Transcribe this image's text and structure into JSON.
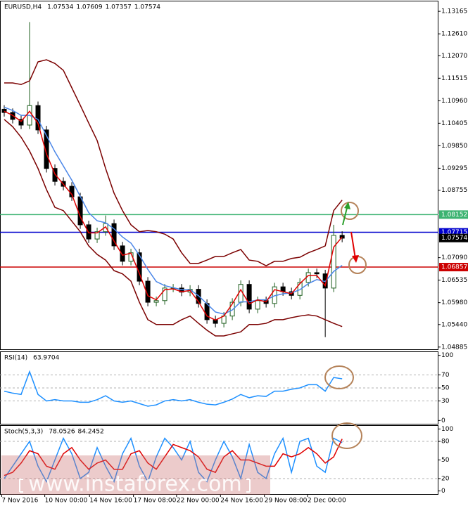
{
  "chart_data": [
    {
      "type": "candlestick",
      "title": "EURUSD,H4",
      "header_values": [
        1.07534,
        1.07609,
        1.07357,
        1.07574
      ],
      "open": [
        1.1075,
        1.1067,
        1.105,
        1.1036,
        1.1084,
        1.1024,
        1.0929,
        1.0897,
        1.0885,
        1.0859,
        1.079,
        1.0755,
        1.0773,
        1.0793,
        1.0738,
        1.07,
        1.0721,
        1.0651,
        1.0599,
        1.0603,
        1.0634,
        1.0634,
        1.0624,
        1.0631,
        1.0596,
        1.0556,
        1.0547,
        1.0565,
        1.0599,
        1.0643,
        1.0582,
        1.0603,
        1.0596,
        1.0637,
        1.0625,
        1.0616,
        1.0648,
        1.0672,
        1.0669,
        1.0634,
        1.0764
      ],
      "high": [
        1.1085,
        1.1077,
        1.106,
        1.129,
        1.1094,
        1.1034,
        1.0939,
        1.0907,
        1.0895,
        1.0869,
        1.08,
        1.0783,
        1.0813,
        1.0803,
        1.0748,
        1.0731,
        1.0731,
        1.0661,
        1.0613,
        1.0644,
        1.0644,
        1.0644,
        1.0641,
        1.0641,
        1.0606,
        1.0566,
        1.0575,
        1.0609,
        1.0653,
        1.0653,
        1.0613,
        1.0613,
        1.0647,
        1.0647,
        1.0635,
        1.0658,
        1.0682,
        1.0682,
        1.0679,
        1.079,
        1.0774
      ],
      "low": [
        1.1057,
        1.104,
        1.1026,
        1.1026,
        1.1014,
        1.0919,
        1.0887,
        1.0875,
        1.0849,
        1.078,
        1.0745,
        1.0745,
        1.0763,
        1.0728,
        1.069,
        1.069,
        1.0641,
        1.0589,
        1.0589,
        1.0593,
        1.0624,
        1.0614,
        1.0614,
        1.0586,
        1.0546,
        1.0537,
        1.0537,
        1.0555,
        1.0589,
        1.0572,
        1.0572,
        1.0586,
        1.0586,
        1.0615,
        1.0606,
        1.0606,
        1.0638,
        1.0659,
        1.0513,
        1.0624,
        1.0747
      ],
      "close": [
        1.1067,
        1.105,
        1.1036,
        1.1084,
        1.1024,
        1.0929,
        1.0897,
        1.0885,
        1.0859,
        1.079,
        1.0755,
        1.0773,
        1.0793,
        1.0738,
        1.07,
        1.0721,
        1.0651,
        1.0599,
        1.0603,
        1.0634,
        1.0634,
        1.0624,
        1.0631,
        1.0596,
        1.0556,
        1.0547,
        1.0565,
        1.0599,
        1.0643,
        1.0582,
        1.0603,
        1.0596,
        1.0637,
        1.0625,
        1.0616,
        1.0648,
        1.0672,
        1.0669,
        1.0634,
        1.0764,
        1.0757
      ],
      "up_color": "#1f5f1f",
      "down_color": "#000000",
      "overlays": [
        {
          "color": "#7b0000",
          "values": [
            1.114,
            1.114,
            1.1136,
            1.1145,
            1.1192,
            1.1197,
            1.1188,
            1.1171,
            1.1128,
            1.1085,
            1.1041,
            1.0998,
            1.0929,
            1.0868,
            1.0825,
            1.079,
            1.0773,
            1.0776,
            1.0773,
            1.0767,
            1.0755,
            1.0721,
            1.0695,
            1.0695,
            1.0703,
            1.0712,
            1.0712,
            1.0721,
            1.0729,
            1.0703,
            1.07,
            1.0689,
            1.07,
            1.07,
            1.0707,
            1.071,
            1.0721,
            1.0729,
            1.0738,
            1.0825,
            1.0851
          ]
        },
        {
          "color": "#7b0000",
          "values": [
            1.105,
            1.1032,
            1.1006,
            1.0972,
            1.0929,
            1.0877,
            1.0833,
            1.0825,
            1.0799,
            1.0773,
            1.0738,
            1.0717,
            1.0703,
            1.0677,
            1.0669,
            1.0651,
            1.0599,
            1.0556,
            1.0544,
            1.0544,
            1.0544,
            1.0556,
            1.0565,
            1.0547,
            1.053,
            1.0516,
            1.0516,
            1.0521,
            1.0526,
            1.0544,
            1.0544,
            1.0547,
            1.0556,
            1.0556,
            1.0561,
            1.0565,
            1.0568,
            1.0565,
            1.0556,
            1.0547,
            1.0539
          ]
        },
        {
          "color": "#4a86e8",
          "values": [
            1.108,
            1.1072,
            1.106,
            1.106,
            1.105,
            1.101,
            1.097,
            1.0935,
            1.09,
            1.086,
            1.082,
            1.08,
            1.0795,
            1.078,
            1.076,
            1.0745,
            1.0715,
            1.068,
            1.065,
            1.064,
            1.0635,
            1.063,
            1.063,
            1.0615,
            1.0595,
            1.0575,
            1.057,
            1.058,
            1.06,
            1.06,
            1.0605,
            1.0605,
            1.0615,
            1.062,
            1.0622,
            1.063,
            1.0645,
            1.0655,
            1.065,
            1.0675,
            1.069
          ]
        },
        {
          "color": "#e00000",
          "values": [
            1.107,
            1.106,
            1.1045,
            1.107,
            1.104,
            1.0965,
            1.0915,
            1.089,
            1.0865,
            1.081,
            1.077,
            1.077,
            1.0785,
            1.075,
            1.0715,
            1.072,
            1.067,
            1.0615,
            1.0605,
            1.063,
            1.0632,
            1.0625,
            1.0628,
            1.06,
            1.0565,
            1.0555,
            1.0565,
            1.0595,
            1.063,
            1.0595,
            1.0605,
            1.06,
            1.063,
            1.0625,
            1.062,
            1.0645,
            1.0665,
            1.0665,
            1.064,
            1.0735,
            1.076
          ]
        }
      ],
      "levels": [
        {
          "value": 1.08152,
          "color": "#3cb371"
        },
        {
          "value": 1.07715,
          "color": "#0000cd"
        },
        {
          "value": 1.06857,
          "color": "#cc0000"
        }
      ],
      "last_price": 1.07574,
      "xlim": [
        -0.5,
        51.4
      ],
      "ylim": [
        1.0483,
        1.1341
      ],
      "yticks": [
        1.13165,
        {
          "value": 1.1261,
          "label": "1.12610"
        },
        {
          "value": 1.1207,
          "label": "1.12070"
        },
        1.11515,
        {
          "value": 1.1096,
          "label": "1.10960"
        },
        1.10405,
        {
          "value": 1.0985,
          "label": "1.09850"
        },
        1.09295,
        1.08755,
        {
          "value": 1.0709,
          "label": "1.07090"
        },
        1.06535,
        {
          "value": 1.0598,
          "label": "1.05980"
        },
        {
          "value": 1.0544,
          "label": "1.05440"
        },
        1.04885
      ]
    },
    {
      "type": "line",
      "title": "RSI(14)",
      "header_values": [
        63.9704
      ],
      "series": [
        {
          "color": "#1e90ff",
          "values": [
            45,
            42,
            40,
            75,
            40,
            30,
            32,
            30,
            30,
            28,
            28,
            32,
            38,
            30,
            28,
            30,
            26,
            22,
            24,
            30,
            32,
            30,
            32,
            28,
            25,
            24,
            28,
            33,
            40,
            35,
            38,
            37,
            45,
            45,
            48,
            50,
            55,
            55,
            45,
            66,
            64
          ]
        }
      ],
      "xlim": [
        -0.5,
        51.4
      ],
      "ylim": [
        -5,
        105
      ],
      "yticks": [
        100,
        70,
        50,
        30,
        0
      ],
      "grid_levels": [
        70,
        50,
        30
      ]
    },
    {
      "type": "line",
      "title": "Stoch(5,3,3)",
      "header_values": [
        78.0526,
        84.2452
      ],
      "series": [
        {
          "color": "#1e90ff",
          "values": [
            20,
            40,
            60,
            80,
            40,
            15,
            50,
            85,
            60,
            20,
            30,
            70,
            40,
            15,
            60,
            85,
            40,
            15,
            55,
            85,
            70,
            50,
            80,
            30,
            15,
            50,
            80,
            55,
            20,
            75,
            30,
            20,
            60,
            85,
            30,
            80,
            85,
            40,
            30,
            85,
            78
          ]
        },
        {
          "color": "#e00000",
          "values": [
            25,
            30,
            45,
            65,
            60,
            40,
            35,
            60,
            70,
            50,
            35,
            45,
            50,
            35,
            35,
            60,
            65,
            45,
            35,
            55,
            75,
            70,
            65,
            55,
            35,
            30,
            55,
            65,
            50,
            50,
            45,
            40,
            40,
            60,
            55,
            60,
            70,
            60,
            45,
            55,
            84
          ]
        }
      ],
      "xlim": [
        -0.5,
        51.4
      ],
      "ylim": [
        -5,
        105
      ],
      "yticks": [
        100,
        80,
        50,
        20,
        0
      ],
      "grid_levels": [
        80,
        20
      ],
      "xticks": [
        {
          "value": -0.3,
          "label": "7 Nov 2016"
        },
        {
          "value": 4.8,
          "label": "10 Nov 00:00"
        },
        {
          "value": 10.1,
          "label": "14 Nov 16:00"
        },
        {
          "value": 15.3,
          "label": "17 Nov 08:00"
        },
        {
          "value": 20.4,
          "label": "22 Nov 00:00"
        },
        {
          "value": 25.6,
          "label": "24 Nov 16:00"
        },
        {
          "value": 30.8,
          "label": "29 Nov 08:00"
        },
        {
          "value": 35.9,
          "label": "2 Dec 00:00"
        }
      ]
    }
  ],
  "watermark": "www.instaforex.com"
}
